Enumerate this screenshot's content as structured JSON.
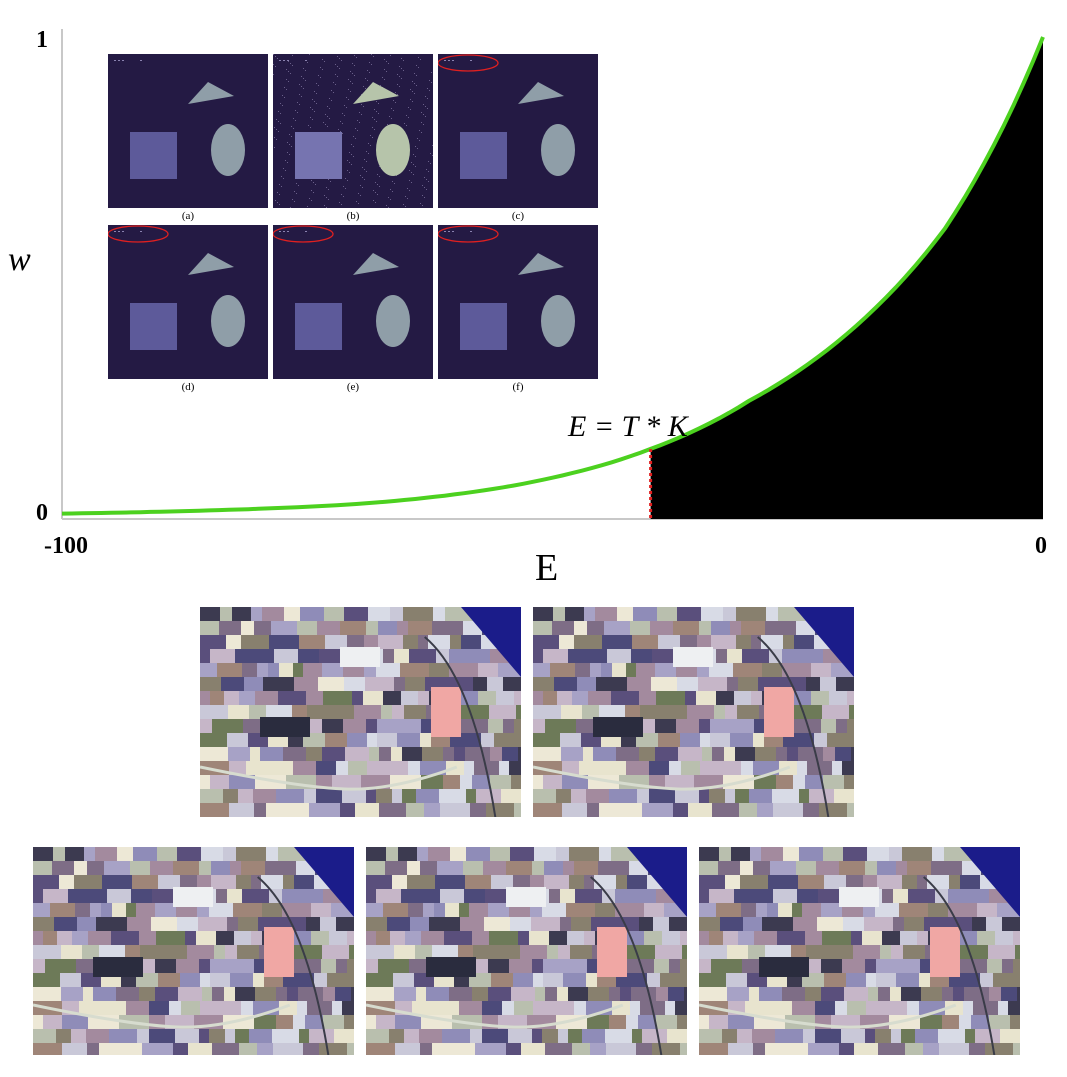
{
  "chart_data": {
    "type": "line",
    "xlabel": "E",
    "ylabel": "w",
    "xlim": [
      -100,
      0
    ],
    "ylim": [
      0,
      1
    ],
    "x_ticks": [
      "-100",
      "0"
    ],
    "y_ticks": [
      "0",
      "1"
    ],
    "series": [
      {
        "color": "#4cd11f",
        "x": [
          -100,
          -90,
          -80,
          -70,
          -60,
          -50,
          -40,
          -30,
          -20,
          -10,
          0
        ],
        "y": [
          0.005,
          0.009,
          0.015,
          0.025,
          0.045,
          0.08,
          0.14,
          0.24,
          0.38,
          0.6,
          1.0
        ]
      }
    ],
    "threshold": {
      "x": -40,
      "label": "E = T * K",
      "line_color": "#e02020",
      "fill_color": "#000000"
    }
  },
  "inset_panels": {
    "captions": [
      "(a)",
      "(b)",
      "(c)",
      "(d)",
      "(e)",
      "(f)"
    ],
    "bg_color": "#241a44",
    "shape_color": "#8f9ea8",
    "square_color": "#5d5a9a",
    "highlight_color": "#e02020"
  },
  "field_images": {
    "count": 5
  }
}
